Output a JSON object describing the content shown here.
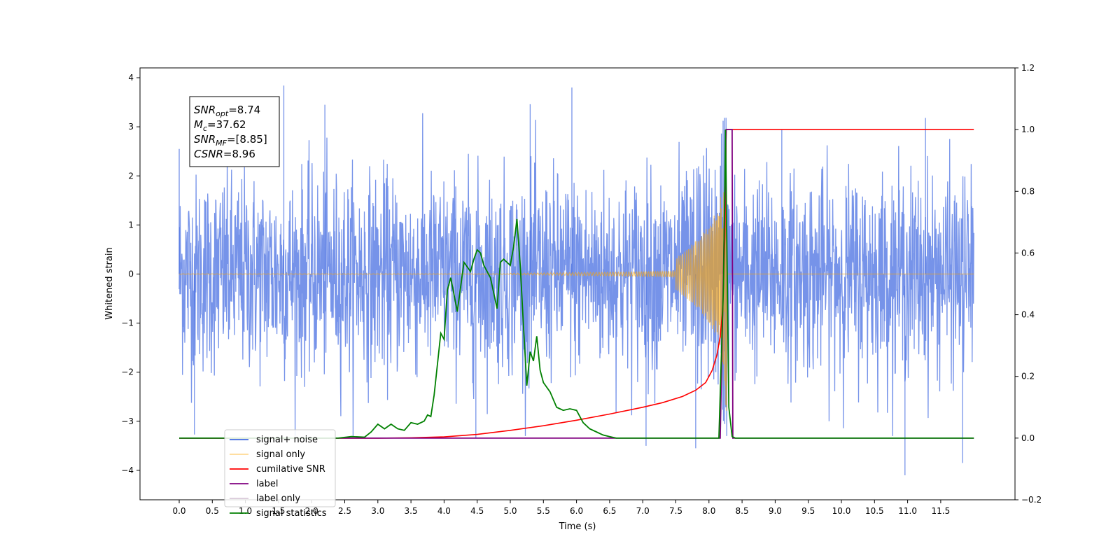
{
  "chart_data": {
    "type": "line",
    "xlabel": "Time (s)",
    "ylabel": "Whitened strain",
    "xlim": [
      -0.6,
      12.6
    ],
    "ylim": [
      -4.6,
      4.2
    ],
    "y2lim": [
      -0.2,
      1.2
    ],
    "xticks": [
      0.0,
      0.5,
      1.0,
      1.5,
      2.0,
      2.5,
      3.0,
      3.5,
      4.0,
      4.5,
      5.0,
      5.5,
      6.0,
      6.5,
      7.0,
      7.5,
      8.0,
      8.5,
      9.0,
      9.5,
      10.0,
      10.5,
      11.0,
      11.5
    ],
    "xtick_labels": [
      "0.0",
      "0.5",
      "1.0",
      "1.5",
      "2.0",
      "2.5",
      "3.0",
      "3.5",
      "4.0",
      "4.5",
      "5.0",
      "5.5",
      "6.0",
      "6.5",
      "7.0",
      "7.5",
      "8.0",
      "8.5",
      "9.0",
      "9.5",
      "10.0",
      "10.5",
      "11.0",
      "11.5"
    ],
    "yticks": [
      -4,
      -3,
      -2,
      -1,
      0,
      1,
      2,
      3,
      4
    ],
    "ytick_labels": [
      "−4",
      "−3",
      "−2",
      "−1",
      "0",
      "1",
      "2",
      "3",
      "4"
    ],
    "y2ticks": [
      -0.2,
      0.0,
      0.2,
      0.4,
      0.6,
      0.8,
      1.0,
      1.2
    ],
    "y2tick_labels": [
      "−0.2",
      "0.0",
      "0.2",
      "0.4",
      "0.6",
      "0.8",
      "1.0",
      "1.2"
    ],
    "legend_placement": "lower-left",
    "annotation": {
      "lines": [
        {
          "sym": "SNR",
          "sub": "opt",
          "value": "=8.74"
        },
        {
          "sym": "M",
          "sub": "c",
          "value": "=37.62"
        },
        {
          "sym": "SNR",
          "sub": "MF",
          "value": "=[8.85]"
        },
        {
          "sym": "CSNR",
          "sub": "",
          "value": "=8.96"
        }
      ]
    },
    "series": [
      {
        "name": "signal+ noise",
        "color": "#4169e1",
        "axis": "left",
        "x_range": [
          0.0,
          12.0
        ],
        "typical_amplitude": 1.0,
        "peak_values": [
          [
            0.0,
            2.55
          ],
          [
            0.23,
            -3.27
          ],
          [
            1.58,
            3.84
          ],
          [
            2.2,
            3.45
          ],
          [
            5.3,
            3.46
          ],
          [
            5.93,
            3.8
          ],
          [
            7.05,
            -3.5
          ],
          [
            7.8,
            -3.55
          ],
          [
            9.1,
            2.95
          ],
          [
            10.96,
            -4.1
          ],
          [
            11.27,
            3.18
          ],
          [
            11.83,
            -3.85
          ],
          [
            4.48,
            -3.35
          ]
        ]
      },
      {
        "name": "signal only",
        "color": "#ffa500",
        "axis": "left",
        "x_range": [
          0.0,
          12.0
        ],
        "chirp_end": 8.27,
        "peak_amplitude": 2.8
      },
      {
        "name": "cumilative SNR",
        "color": "#ff0000",
        "axis": "right",
        "x": [
          0.0,
          3.0,
          3.5,
          4.0,
          4.5,
          5.0,
          5.5,
          6.0,
          6.5,
          7.0,
          7.3,
          7.6,
          7.8,
          7.95,
          8.05,
          8.12,
          8.17,
          8.2,
          8.22,
          8.24,
          8.25,
          8.26,
          12.0
        ],
        "y": [
          0.0,
          0.0,
          0.001,
          0.004,
          0.012,
          0.025,
          0.04,
          0.058,
          0.078,
          0.1,
          0.115,
          0.135,
          0.155,
          0.18,
          0.22,
          0.27,
          0.33,
          0.4,
          0.5,
          0.65,
          0.8,
          1.0,
          1.0
        ]
      },
      {
        "name": "label",
        "color": "#800080",
        "axis": "right",
        "x": [
          0.0,
          8.17,
          8.26,
          8.35,
          8.36,
          12.0
        ],
        "y": [
          0.0,
          0.0,
          1.0,
          1.0,
          0.0,
          0.0
        ]
      },
      {
        "name": "label only",
        "color": "#d8c8d8",
        "axis": "right",
        "x": [],
        "y": []
      },
      {
        "name": "signal statistics",
        "color": "#008000",
        "axis": "right",
        "x": [
          0.0,
          2.4,
          2.6,
          2.8,
          2.9,
          3.0,
          3.1,
          3.2,
          3.3,
          3.4,
          3.5,
          3.6,
          3.7,
          3.75,
          3.8,
          3.85,
          3.95,
          4.0,
          4.05,
          4.1,
          4.2,
          4.3,
          4.4,
          4.45,
          4.5,
          4.55,
          4.6,
          4.7,
          4.8,
          4.85,
          4.9,
          5.0,
          5.05,
          5.1,
          5.15,
          5.2,
          5.25,
          5.3,
          5.35,
          5.4,
          5.45,
          5.5,
          5.6,
          5.7,
          5.75,
          5.8,
          5.9,
          6.0,
          6.1,
          6.2,
          6.3,
          6.4,
          6.5,
          6.6,
          7.0,
          8.15,
          8.22,
          8.25,
          8.3,
          8.35,
          8.4,
          12.0
        ],
        "y": [
          0.0,
          0.0,
          0.005,
          0.003,
          0.02,
          0.045,
          0.03,
          0.045,
          0.03,
          0.025,
          0.05,
          0.045,
          0.055,
          0.075,
          0.07,
          0.14,
          0.34,
          0.32,
          0.48,
          0.52,
          0.41,
          0.57,
          0.54,
          0.58,
          0.61,
          0.6,
          0.56,
          0.52,
          0.42,
          0.57,
          0.58,
          0.56,
          0.62,
          0.71,
          0.56,
          0.36,
          0.17,
          0.28,
          0.25,
          0.33,
          0.22,
          0.18,
          0.15,
          0.1,
          0.095,
          0.09,
          0.095,
          0.09,
          0.05,
          0.03,
          0.02,
          0.01,
          0.005,
          0.0,
          0.0,
          0.0,
          0.5,
          1.0,
          0.1,
          0.005,
          0.0,
          0.0
        ]
      }
    ]
  }
}
